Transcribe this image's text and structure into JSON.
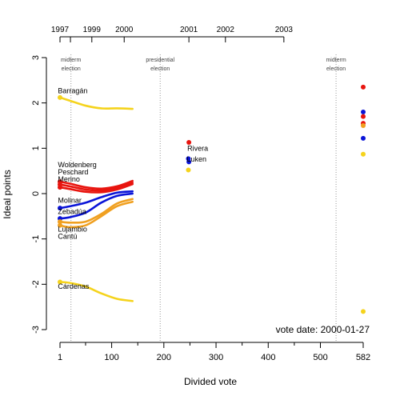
{
  "chart_data": {
    "type": "line",
    "xlabel": "Divided vote",
    "ylabel": "Ideal points",
    "xlim": [
      1,
      582
    ],
    "ylim": [
      -3,
      3
    ],
    "x_ticks": [
      "1",
      "100",
      "200",
      "300",
      "400",
      "500",
      "582"
    ],
    "x_tick_values": [
      1,
      100,
      200,
      300,
      400,
      500,
      582
    ],
    "y_ticks": [
      "3",
      "2",
      "1",
      "0",
      "-1",
      "-2",
      "-3"
    ],
    "y_tick_values": [
      3,
      2,
      1,
      0,
      -1,
      -2,
      -3
    ],
    "top_axis": {
      "labels": [
        {
          "text": "1997",
          "x": 1
        },
        {
          "text": "1999",
          "x": 62
        },
        {
          "text": "2000",
          "x": 124
        },
        {
          "text": "2001",
          "x": 248
        },
        {
          "text": "2002",
          "x": 318
        },
        {
          "text": "2003",
          "x": 430
        }
      ],
      "minor_ticks": [
        1,
        21,
        62,
        124,
        248,
        318,
        430
      ]
    },
    "events": [
      {
        "line1": "midterm",
        "line2": "election",
        "x": 22
      },
      {
        "line1": "presidential",
        "line2": "election",
        "x": 193
      },
      {
        "line1": "midterm",
        "line2": "election",
        "x": 530
      }
    ],
    "vote_date_label": "vote date: 2000-01-27",
    "colors": {
      "yellow": "#f5d31c",
      "red": "#e8150f",
      "blue": "#0a14d8",
      "orange": "#f0a020"
    },
    "series": [
      {
        "name": "Barragán",
        "color": "#f5d31c",
        "x": [
          1,
          20,
          50,
          80,
          110,
          140
        ],
        "y": [
          2.12,
          2.05,
          1.94,
          1.88,
          1.88,
          1.87
        ]
      },
      {
        "name": "Cárdenas",
        "color": "#f5d31c",
        "x": [
          1,
          20,
          50,
          80,
          110,
          140
        ],
        "y": [
          -1.95,
          -1.97,
          -2.05,
          -2.2,
          -2.32,
          -2.37
        ]
      },
      {
        "name": "Woldenberg",
        "color": "#e8150f",
        "x": [
          1,
          20,
          50,
          80,
          110,
          140
        ],
        "y": [
          0.26,
          0.22,
          0.14,
          0.11,
          0.16,
          0.28
        ]
      },
      {
        "name": "Peschard",
        "color": "#e8150f",
        "x": [
          1,
          20,
          50,
          80,
          110,
          140
        ],
        "y": [
          0.2,
          0.16,
          0.09,
          0.07,
          0.12,
          0.24
        ]
      },
      {
        "name": "Merino",
        "color": "#e8150f",
        "x": [
          1,
          20,
          50,
          80,
          110,
          140
        ],
        "y": [
          0.14,
          0.1,
          0.04,
          0.03,
          0.09,
          0.21
        ]
      },
      {
        "name": "Molinar",
        "color": "#0a14d8",
        "x": [
          1,
          20,
          50,
          80,
          110,
          140
        ],
        "y": [
          -0.32,
          -0.28,
          -0.2,
          -0.08,
          0.02,
          0.05
        ]
      },
      {
        "name": "Zebadúa",
        "color": "#0a14d8",
        "x": [
          1,
          20,
          50,
          80,
          110,
          140
        ],
        "y": [
          -0.55,
          -0.52,
          -0.42,
          -0.2,
          -0.05,
          0.0
        ]
      },
      {
        "name": "Lujambio",
        "color": "#f0a020",
        "x": [
          1,
          20,
          50,
          80,
          110,
          140
        ],
        "y": [
          -0.62,
          -0.64,
          -0.62,
          -0.45,
          -0.22,
          -0.12
        ]
      },
      {
        "name": "Cantú",
        "color": "#f0a020",
        "x": [
          1,
          20,
          50,
          80,
          110,
          140
        ],
        "y": [
          -0.7,
          -0.74,
          -0.7,
          -0.5,
          -0.28,
          -0.18
        ]
      }
    ],
    "series_labels": [
      {
        "text": "Barragán",
        "x": -3,
        "y": 2.27
      },
      {
        "text": "Woldenberg",
        "x": -3,
        "y": 0.64
      },
      {
        "text": "Peschard",
        "x": -3,
        "y": 0.48
      },
      {
        "text": "Merino",
        "x": -3,
        "y": 0.32
      },
      {
        "text": "Molinar",
        "x": -3,
        "y": -0.15
      },
      {
        "text": "Zebadúa",
        "x": -3,
        "y": -0.39
      },
      {
        "text": "Lujambio",
        "x": -3,
        "y": -0.78
      },
      {
        "text": "Cantú",
        "x": -3,
        "y": -0.94
      },
      {
        "text": "Cárdenas",
        "x": -3,
        "y": -2.04
      }
    ],
    "mid_points": [
      {
        "x": 248,
        "y": 1.13,
        "color": "#e8150f"
      },
      {
        "x": 247,
        "y": 0.77,
        "color": "#0a14d8"
      },
      {
        "x": 248,
        "y": 0.7,
        "color": "#0a14d8"
      },
      {
        "x": 247,
        "y": 0.52,
        "color": "#f5d31c"
      }
    ],
    "mid_labels": [
      {
        "text": "Rivera",
        "x": 245,
        "y": 1.0
      },
      {
        "text": "Luken",
        "x": 244,
        "y": 0.76
      }
    ],
    "end_points": [
      {
        "x": 582,
        "y": 2.35,
        "color": "#e8150f"
      },
      {
        "x": 582,
        "y": 1.8,
        "color": "#0a14d8"
      },
      {
        "x": 582,
        "y": 1.7,
        "color": "#e8150f"
      },
      {
        "x": 582,
        "y": 1.55,
        "color": "#e8150f"
      },
      {
        "x": 582,
        "y": 1.5,
        "color": "#f0a020"
      },
      {
        "x": 582,
        "y": 1.22,
        "color": "#0a14d8"
      },
      {
        "x": 582,
        "y": 0.87,
        "color": "#f5d31c"
      },
      {
        "x": 582,
        "y": -2.6,
        "color": "#f5d31c"
      }
    ]
  }
}
